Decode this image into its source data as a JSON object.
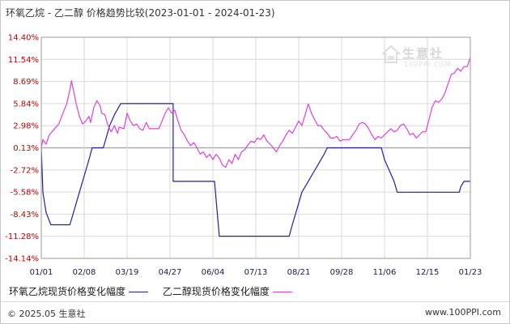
{
  "title": "环氧乙烷 - 乙二醇 价格趋势比较(2023-01-01 - 2024-01-23)",
  "watermark": {
    "brand": "生意社",
    "site": "100PPI.COM"
  },
  "footer": {
    "left": "© 2025.05 生意社",
    "right": "www.100PPI.com"
  },
  "colors": {
    "series1": "#1f1fa8",
    "series2": "#e040e0",
    "grid": "#d9d9d9",
    "zero_line": "#a0a0a0",
    "y_label": "#c00000",
    "x_label": "#1a1a4a"
  },
  "chart_data": {
    "type": "line",
    "title": "环氧乙烷 - 乙二醇 价格趋势比较(2023-01-01 - 2024-01-23)",
    "xlabel": "",
    "ylabel": "",
    "ylim": [
      -14.14,
      14.4
    ],
    "y_ticks": [
      "14.40%",
      "11.54%",
      "8.69%",
      "5.84%",
      "2.98%",
      "0.13%",
      "-2.72%",
      "-5.58%",
      "-8.43%",
      "-11.28%",
      "-14.14%"
    ],
    "x_ticks": [
      "01/01",
      "02/08",
      "03/19",
      "04/27",
      "06/04",
      "07/13",
      "08/21",
      "09/28",
      "11/06",
      "12/15",
      "01/23"
    ],
    "grid": true,
    "legend_position": "bottom",
    "series": [
      {
        "name": "环氧乙烷现货价格变化幅度",
        "points": [
          [
            0,
            0.13
          ],
          [
            1,
            -5.6
          ],
          [
            3,
            -8.2
          ],
          [
            6,
            -9.8
          ],
          [
            18,
            -9.8
          ],
          [
            20,
            -8.4
          ],
          [
            22,
            -7.0
          ],
          [
            24,
            -5.6
          ],
          [
            26,
            -4.2
          ],
          [
            28,
            -2.8
          ],
          [
            30,
            -1.4
          ],
          [
            32,
            0.13
          ],
          [
            39,
            0.13
          ],
          [
            41,
            1.55
          ],
          [
            43,
            2.98
          ],
          [
            46,
            4.4
          ],
          [
            50,
            5.84
          ],
          [
            83,
            5.84
          ],
          [
            83,
            -4.2
          ],
          [
            109,
            -4.2
          ],
          [
            112,
            -11.28
          ],
          [
            156,
            -11.28
          ],
          [
            158,
            -9.8
          ],
          [
            160,
            -8.4
          ],
          [
            162,
            -7.0
          ],
          [
            164,
            -5.6
          ],
          [
            166,
            -4.9
          ],
          [
            168,
            -4.2
          ],
          [
            170,
            -3.5
          ],
          [
            172,
            -2.8
          ],
          [
            174,
            -2.1
          ],
          [
            176,
            -1.4
          ],
          [
            178,
            -0.7
          ],
          [
            180,
            0.13
          ],
          [
            214,
            0.13
          ],
          [
            216,
            -1.4
          ],
          [
            219,
            -2.8
          ],
          [
            222,
            -4.2
          ],
          [
            224,
            -5.6
          ],
          [
            263,
            -5.6
          ],
          [
            264,
            -4.9
          ],
          [
            266,
            -4.2
          ],
          [
            270,
            -4.2
          ]
        ]
      },
      {
        "name": "乙二醇现货价格变化幅度",
        "points": [
          [
            0,
            0.13
          ],
          [
            1,
            1.2
          ],
          [
            3,
            0.6
          ],
          [
            5,
            1.8
          ],
          [
            8,
            2.5
          ],
          [
            11,
            3.2
          ],
          [
            14,
            4.8
          ],
          [
            16,
            5.8
          ],
          [
            18,
            7.6
          ],
          [
            19,
            8.8
          ],
          [
            20,
            7.8
          ],
          [
            22,
            5.8
          ],
          [
            24,
            4.2
          ],
          [
            26,
            3.2
          ],
          [
            28,
            3.6
          ],
          [
            30,
            4.2
          ],
          [
            31,
            3.4
          ],
          [
            33,
            5.3
          ],
          [
            35,
            6.2
          ],
          [
            37,
            5.6
          ],
          [
            38,
            4.6
          ],
          [
            40,
            4.4
          ],
          [
            42,
            3.0
          ],
          [
            44,
            2.2
          ],
          [
            46,
            3.0
          ],
          [
            48,
            2.0
          ],
          [
            49,
            2.8
          ],
          [
            52,
            2.6
          ],
          [
            54,
            4.6
          ],
          [
            56,
            3.6
          ],
          [
            58,
            3.0
          ],
          [
            60,
            3.2
          ],
          [
            62,
            2.6
          ],
          [
            64,
            2.4
          ],
          [
            66,
            3.4
          ],
          [
            68,
            2.6
          ],
          [
            70,
            2.6
          ],
          [
            74,
            2.6
          ],
          [
            76,
            3.6
          ],
          [
            78,
            4.6
          ],
          [
            80,
            5.3
          ],
          [
            82,
            4.6
          ],
          [
            84,
            5.0
          ],
          [
            86,
            3.6
          ],
          [
            88,
            2.4
          ],
          [
            90,
            1.8
          ],
          [
            92,
            1.0
          ],
          [
            94,
            0.4
          ],
          [
            96,
            0.8
          ],
          [
            98,
            0.13
          ],
          [
            100,
            -0.7
          ],
          [
            102,
            -0.4
          ],
          [
            104,
            -1.1
          ],
          [
            106,
            -0.7
          ],
          [
            108,
            -1.4
          ],
          [
            110,
            -0.7
          ],
          [
            112,
            -1.2
          ],
          [
            114,
            -2.1
          ],
          [
            116,
            -2.4
          ],
          [
            118,
            -1.4
          ],
          [
            120,
            -1.9
          ],
          [
            122,
            -0.7
          ],
          [
            124,
            -1.4
          ],
          [
            126,
            -0.4
          ],
          [
            128,
            -0.1
          ],
          [
            130,
            0.5
          ],
          [
            132,
            1.0
          ],
          [
            134,
            0.8
          ],
          [
            136,
            1.4
          ],
          [
            138,
            1.2
          ],
          [
            140,
            1.8
          ],
          [
            142,
            1.0
          ],
          [
            144,
            0.6
          ],
          [
            146,
            0.13
          ],
          [
            148,
            -0.4
          ],
          [
            150,
            0.4
          ],
          [
            152,
            1.0
          ],
          [
            154,
            1.8
          ],
          [
            156,
            2.4
          ],
          [
            158,
            2.0
          ],
          [
            160,
            2.8
          ],
          [
            162,
            3.6
          ],
          [
            164,
            3.0
          ],
          [
            166,
            4.4
          ],
          [
            168,
            5.8
          ],
          [
            170,
            4.6
          ],
          [
            172,
            3.8
          ],
          [
            174,
            3.0
          ],
          [
            176,
            3.0
          ],
          [
            178,
            2.4
          ],
          [
            180,
            2.0
          ],
          [
            182,
            1.4
          ],
          [
            184,
            1.4
          ],
          [
            186,
            1.6
          ],
          [
            188,
            1.0
          ],
          [
            190,
            1.2
          ],
          [
            194,
            1.2
          ],
          [
            196,
            1.8
          ],
          [
            198,
            2.4
          ],
          [
            200,
            3.2
          ],
          [
            202,
            3.4
          ],
          [
            204,
            3.2
          ],
          [
            206,
            2.6
          ],
          [
            208,
            1.8
          ],
          [
            210,
            1.2
          ],
          [
            212,
            1.6
          ],
          [
            214,
            1.4
          ],
          [
            216,
            1.8
          ],
          [
            218,
            2.2
          ],
          [
            220,
            2.6
          ],
          [
            222,
            2.2
          ],
          [
            224,
            2.4
          ],
          [
            226,
            3.0
          ],
          [
            228,
            3.2
          ],
          [
            230,
            2.6
          ],
          [
            232,
            1.8
          ],
          [
            234,
            2.0
          ],
          [
            236,
            1.4
          ],
          [
            238,
            1.8
          ],
          [
            240,
            2.2
          ],
          [
            242,
            2.2
          ],
          [
            244,
            3.8
          ],
          [
            246,
            5.4
          ],
          [
            248,
            6.2
          ],
          [
            250,
            6.0
          ],
          [
            252,
            6.4
          ],
          [
            254,
            7.2
          ],
          [
            256,
            8.4
          ],
          [
            258,
            9.6
          ],
          [
            260,
            9.8
          ],
          [
            262,
            10.4
          ],
          [
            264,
            10.0
          ],
          [
            266,
            10.6
          ],
          [
            268,
            10.6
          ],
          [
            270,
            11.8
          ]
        ]
      }
    ]
  }
}
